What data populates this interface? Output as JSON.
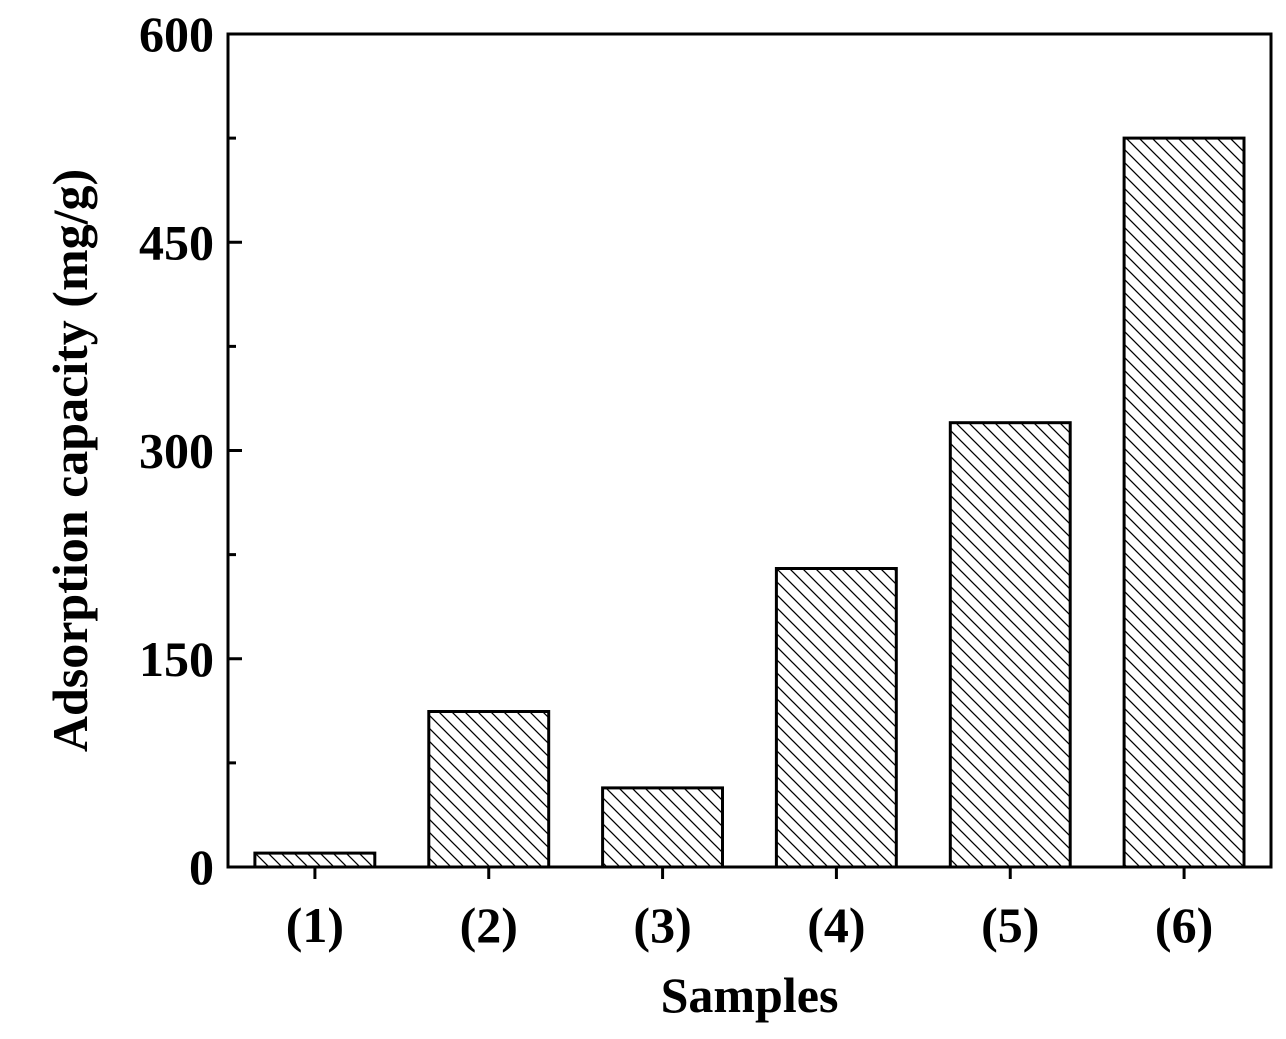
{
  "chart_data": {
    "type": "bar",
    "title": "",
    "xlabel": "Samples",
    "ylabel": "Adsorption capacity (mg/g)",
    "categories": [
      "(1)",
      "(2)",
      "(3)",
      "(4)",
      "(5)",
      "(6)"
    ],
    "values": [
      10,
      112,
      57,
      215,
      320,
      525
    ],
    "ylim": [
      0,
      600
    ],
    "yticks": [
      0,
      150,
      300,
      450,
      600
    ],
    "yminor_step": 75,
    "ytick_labels": [
      "0",
      "150",
      "300",
      "450",
      "600"
    ],
    "bar_fill": "hatched",
    "colors": {
      "bar_edge": "#000000",
      "hatch": "#000000",
      "background": "#ffffff",
      "axis": "#000000"
    },
    "grid": false,
    "legend": "none"
  }
}
